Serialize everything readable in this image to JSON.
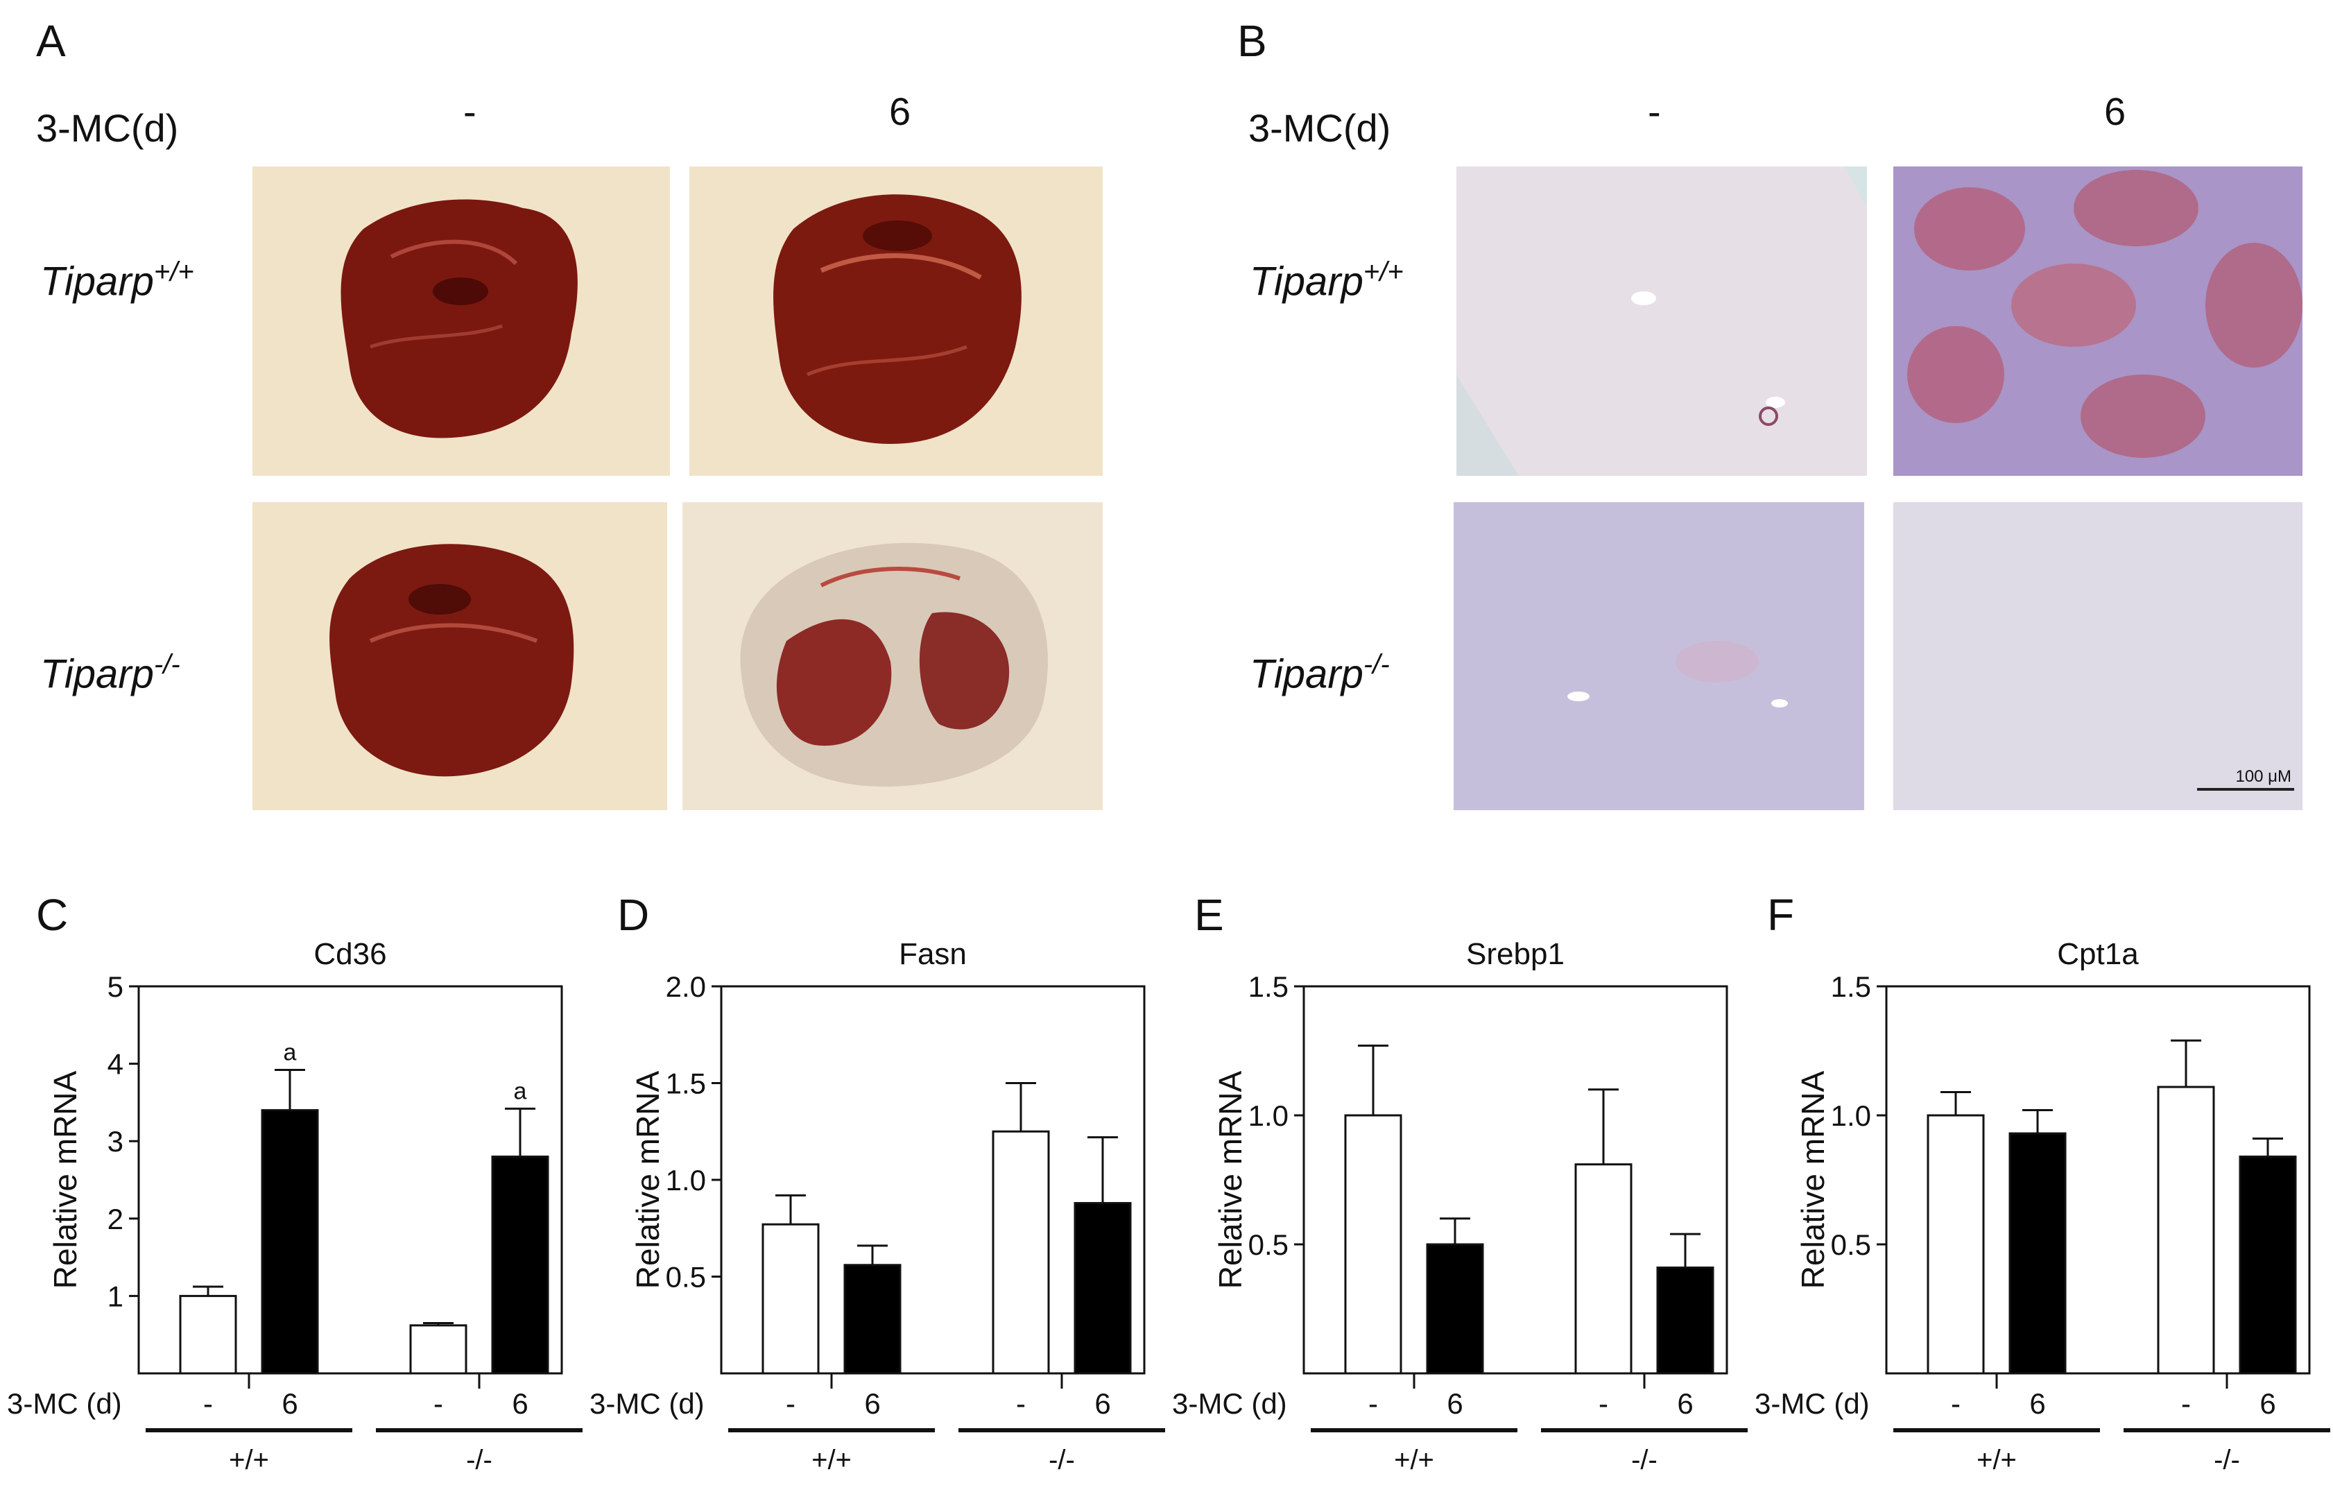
{
  "panels": {
    "A": {
      "letter": "A",
      "treatment_label": "3-MC(d)",
      "columns": [
        "-",
        "6"
      ],
      "rows": [
        {
          "name": "Tiparp",
          "sup": "+/+"
        },
        {
          "name": "Tiparp",
          "sup": "-/-"
        }
      ]
    },
    "B": {
      "letter": "B",
      "treatment_label": "3-MC(d)",
      "columns": [
        "-",
        "6"
      ],
      "rows": [
        {
          "name": "Tiparp",
          "sup": "+/+"
        },
        {
          "name": "Tiparp",
          "sup": "-/-"
        }
      ],
      "scale_bar": "100 μM"
    }
  },
  "chart_data": [
    {
      "panel": "C",
      "type": "bar",
      "title": "Cd36",
      "ylabel": "Relative mRNA",
      "ylim": [
        0,
        5
      ],
      "yticks": [
        "1",
        "2",
        "3",
        "4",
        "5"
      ],
      "yticks_values": [
        1,
        2,
        3,
        4,
        5
      ],
      "treatment_label": "3-MC (d)",
      "categories": [
        "-",
        "6",
        "-",
        "6"
      ],
      "groups": [
        "+/+",
        "-/-"
      ],
      "values": [
        1.0,
        3.4,
        0.62,
        2.8
      ],
      "errors": [
        0.12,
        0.52,
        0.03,
        0.62
      ],
      "fills": [
        "#ffffff",
        "#000000",
        "#ffffff",
        "#000000"
      ],
      "annotations": [
        "",
        "a",
        "",
        "a"
      ]
    },
    {
      "panel": "D",
      "type": "bar",
      "title": "Fasn",
      "ylabel": "Relative mRNA",
      "ylim": [
        0,
        2.0
      ],
      "yticks": [
        "0.5",
        "1.0",
        "1.5",
        "2.0"
      ],
      "yticks_values": [
        0.5,
        1.0,
        1.5,
        2.0
      ],
      "treatment_label": "3-MC (d)",
      "categories": [
        "-",
        "6",
        "-",
        "6"
      ],
      "groups": [
        "+/+",
        "-/-"
      ],
      "values": [
        0.77,
        0.56,
        1.25,
        0.88
      ],
      "errors": [
        0.15,
        0.1,
        0.25,
        0.34
      ],
      "fills": [
        "#ffffff",
        "#000000",
        "#ffffff",
        "#000000"
      ],
      "annotations": [
        "",
        "",
        "",
        ""
      ]
    },
    {
      "panel": "E",
      "type": "bar",
      "title": "Srebp1",
      "ylabel": "Relative mRNA",
      "ylim": [
        0,
        1.5
      ],
      "yticks": [
        "0.5",
        "1.0",
        "1.5"
      ],
      "yticks_values": [
        0.5,
        1.0,
        1.5
      ],
      "treatment_label": "3-MC (d)",
      "categories": [
        "-",
        "6",
        "-",
        "6"
      ],
      "groups": [
        "+/+",
        "-/-"
      ],
      "values": [
        1.0,
        0.5,
        0.81,
        0.41
      ],
      "errors": [
        0.27,
        0.1,
        0.29,
        0.13
      ],
      "fills": [
        "#ffffff",
        "#000000",
        "#ffffff",
        "#000000"
      ],
      "annotations": [
        "",
        "",
        "",
        ""
      ]
    },
    {
      "panel": "F",
      "type": "bar",
      "title": "Cpt1a",
      "ylabel": "Relative mRNA",
      "ylim": [
        0,
        1.5
      ],
      "yticks": [
        "0.5",
        "1.0",
        "1.5"
      ],
      "yticks_values": [
        0.5,
        1.0,
        1.5
      ],
      "treatment_label": "3-MC (d)",
      "categories": [
        "-",
        "6",
        "-",
        "6"
      ],
      "groups": [
        "+/+",
        "-/-"
      ],
      "values": [
        1.0,
        0.93,
        1.11,
        0.84
      ],
      "errors": [
        0.09,
        0.09,
        0.18,
        0.07
      ],
      "fills": [
        "#ffffff",
        "#000000",
        "#ffffff",
        "#000000"
      ],
      "annotations": [
        "",
        "",
        "",
        ""
      ]
    }
  ]
}
